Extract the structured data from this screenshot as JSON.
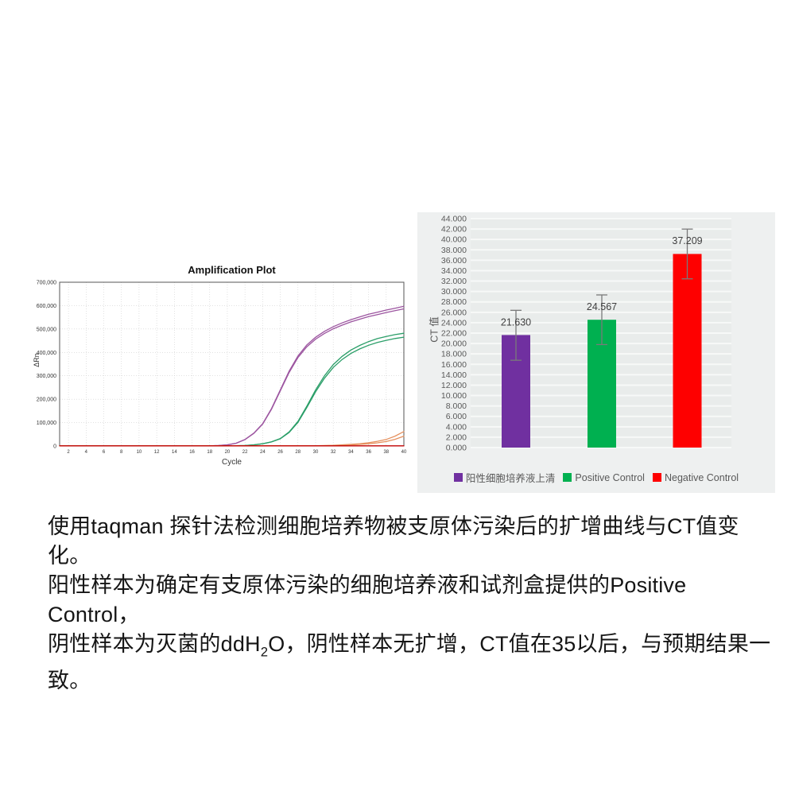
{
  "page": {
    "background": "#ffffff"
  },
  "chart_data": [
    {
      "type": "line",
      "title": "Amplification Plot",
      "xlabel": "Cycle",
      "ylabel": "ΔRn",
      "xlim": [
        1,
        40
      ],
      "ylim": [
        0,
        700000
      ],
      "x_ticks": [
        2,
        4,
        6,
        8,
        10,
        12,
        14,
        16,
        18,
        20,
        22,
        24,
        26,
        28,
        30,
        32,
        34,
        36,
        38,
        40
      ],
      "y_ticks": [
        0,
        100000,
        200000,
        300000,
        400000,
        500000,
        600000,
        700000
      ],
      "grid": "dotted",
      "series": [
        {
          "name": "purple-sample-curves",
          "color": "#9c55a0",
          "replicate_factors": [
            1,
            0.982
          ],
          "values_by_cycle": [
            500,
            500,
            500,
            500,
            500,
            500,
            500,
            500,
            500,
            500,
            500,
            500,
            500,
            500,
            500,
            500,
            500,
            800,
            2000,
            5000,
            12000,
            28000,
            55000,
            95000,
            160000,
            240000,
            320000,
            385000,
            432000,
            465000,
            490000,
            510000,
            526000,
            540000,
            552000,
            563000,
            572000,
            581000,
            589000,
            597000
          ]
        },
        {
          "name": "green-positive-control-curves",
          "color": "#2a9e68",
          "replicate_factors": [
            1,
            0.965
          ],
          "values_by_cycle": [
            500,
            500,
            500,
            500,
            500,
            500,
            500,
            500,
            500,
            500,
            500,
            500,
            500,
            500,
            500,
            500,
            500,
            500,
            500,
            700,
            1200,
            2000,
            5000,
            10000,
            18000,
            32000,
            60000,
            105000,
            170000,
            240000,
            300000,
            348000,
            383000,
            410000,
            430000,
            446000,
            459000,
            468000,
            476000,
            482000
          ]
        },
        {
          "name": "orange-negative-control-curves",
          "color": "#e6915f",
          "replicate_factors": [
            1,
            0.68
          ],
          "values_by_cycle": [
            300,
            300,
            300,
            300,
            300,
            300,
            300,
            300,
            300,
            300,
            300,
            300,
            300,
            300,
            300,
            300,
            300,
            300,
            300,
            300,
            300,
            400,
            500,
            600,
            700,
            800,
            900,
            1000,
            1100,
            1300,
            2000,
            3000,
            5000,
            7000,
            10000,
            14000,
            20000,
            28000,
            42000,
            62000
          ]
        },
        {
          "name": "red-baseline-flat",
          "color": "#c00000",
          "replicate_factors": [
            1
          ],
          "values_by_cycle": [
            800,
            800,
            800,
            800,
            800,
            800,
            800,
            800,
            800,
            800,
            800,
            800,
            800,
            800,
            800,
            800,
            800,
            800,
            800,
            800,
            800,
            800,
            800,
            800,
            800,
            800,
            800,
            800,
            800,
            800,
            800,
            800,
            800,
            800,
            800,
            800,
            800,
            800,
            800,
            800
          ]
        }
      ]
    },
    {
      "type": "bar",
      "ylabel": "CT 值",
      "categories": [
        "阳性细胞培养液上清",
        "Positive Control",
        "Negative Control"
      ],
      "values": [
        21.63,
        24.567,
        37.209
      ],
      "value_labels": [
        "21.630",
        "24.567",
        "37.209"
      ],
      "error_plus": [
        4.75,
        4.77,
        4.78
      ],
      "error_minus": [
        4.85,
        4.77,
        4.78
      ],
      "colors": [
        "#7030a0",
        "#00b050",
        "#fe0000"
      ],
      "ylim": [
        0,
        44
      ],
      "y_tick_step": 2,
      "y_tick_decimals": 3,
      "grid": "horizontal",
      "legend_position": "bottom"
    }
  ],
  "caption": {
    "line1": "使用taqman 探针法检测细胞培养物被支原体污染后的扩增曲线与CT值变化。",
    "line2": "阳性样本为确定有支原体污染的细胞培养液和试剂盒提供的Positive Control，",
    "line3_pre": "阴性样本为灭菌的ddH",
    "line3_sub": "2",
    "line3_post": "O，阴性样本无扩增，CT值在35以后，与预期结果一致。"
  },
  "style_colors": {
    "bar_panel_bg": "#eef0f0",
    "bar_plot_bg": "#e9eceb",
    "bar_gridline": "#f7f9f8",
    "error_bar": "#7a7a7a",
    "axis_text": "#595959",
    "value_label_text": "#3f3f3f"
  }
}
